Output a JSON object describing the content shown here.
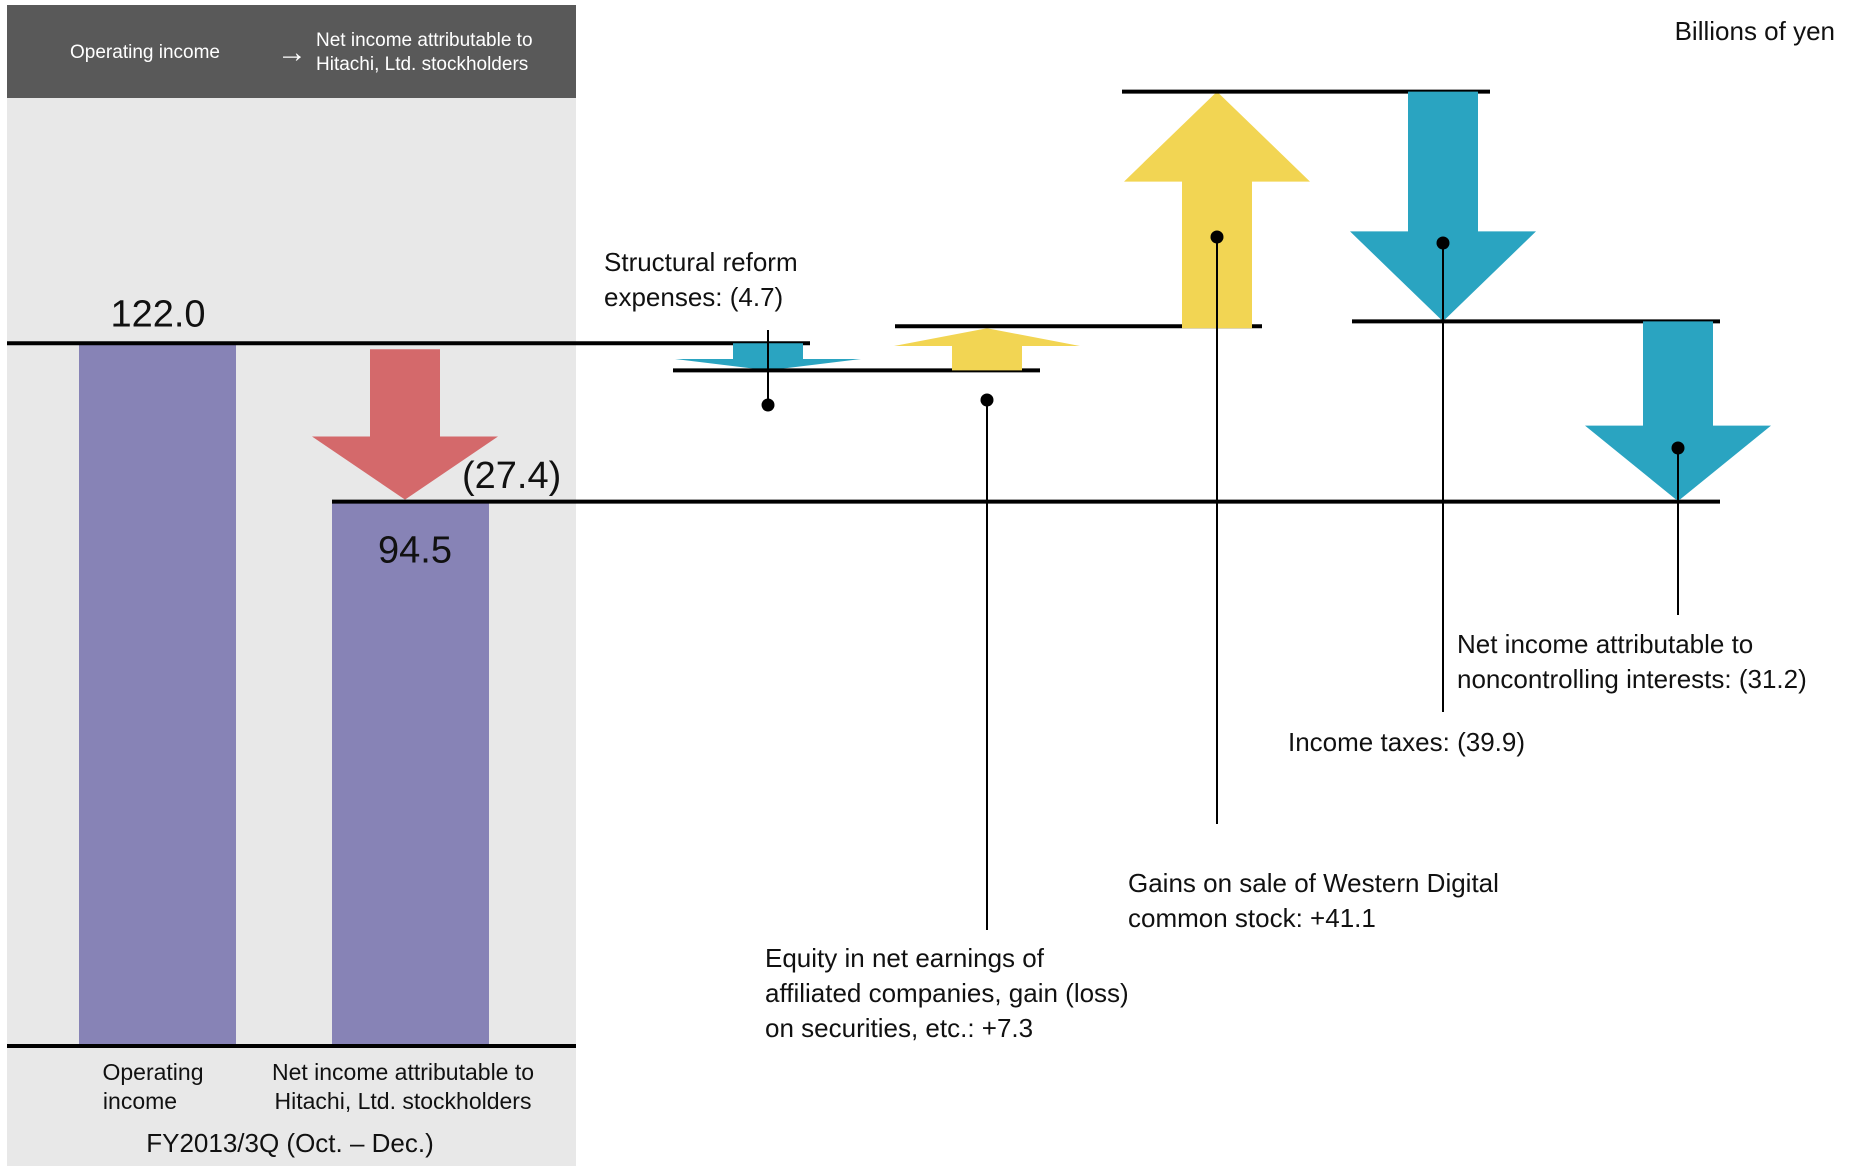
{
  "header": {
    "left": "Operating income",
    "arrow": "→",
    "right_line1": "Net income attributable to",
    "right_line2": "Hitachi, Ltd. stockholders"
  },
  "unit_label": "Billions of yen",
  "period_label": "FY2013/3Q  (Oct. – Dec.)",
  "colors": {
    "bar": "#8783b6",
    "decrease_main": "#d4696b",
    "decrease": "#2aa4c1",
    "increase": "#f2d553",
    "panel_bg": "#e8e8e8",
    "header_bg": "#595959"
  },
  "chart_data": {
    "type": "waterfall",
    "units": "Billions of yen",
    "bars": [
      {
        "id": "operating",
        "category_line1": "Operating",
        "category_line2": "income",
        "value": 122.0,
        "value_label": "122.0"
      },
      {
        "id": "net",
        "category_line1": "Net income attributable to",
        "category_line2": "Hitachi, Ltd. stockholders",
        "value": 94.5,
        "value_label": "94.5"
      }
    ],
    "total_change": {
      "value": -27.4,
      "label": "(27.4)"
    },
    "steps": [
      {
        "id": "structural",
        "value": -4.7,
        "label_lines": [
          "Structural reform",
          "expenses:  (4.7)"
        ]
      },
      {
        "id": "equity",
        "value": 7.3,
        "label_lines": [
          "Equity in net earnings of",
          "affiliated companies, gain (loss)",
          "on securities, etc.: +7.3"
        ]
      },
      {
        "id": "gains",
        "value": 41.1,
        "label_lines": [
          "Gains on sale of Western Digital",
          "common stock: +41.1"
        ]
      },
      {
        "id": "taxes",
        "value": -39.9,
        "label_lines": [
          "Income taxes:  (39.9)"
        ]
      },
      {
        "id": "nci",
        "value": -31.2,
        "label_lines": [
          "Net income attributable to",
          "noncontrolling interests: (31.2)"
        ]
      }
    ]
  }
}
